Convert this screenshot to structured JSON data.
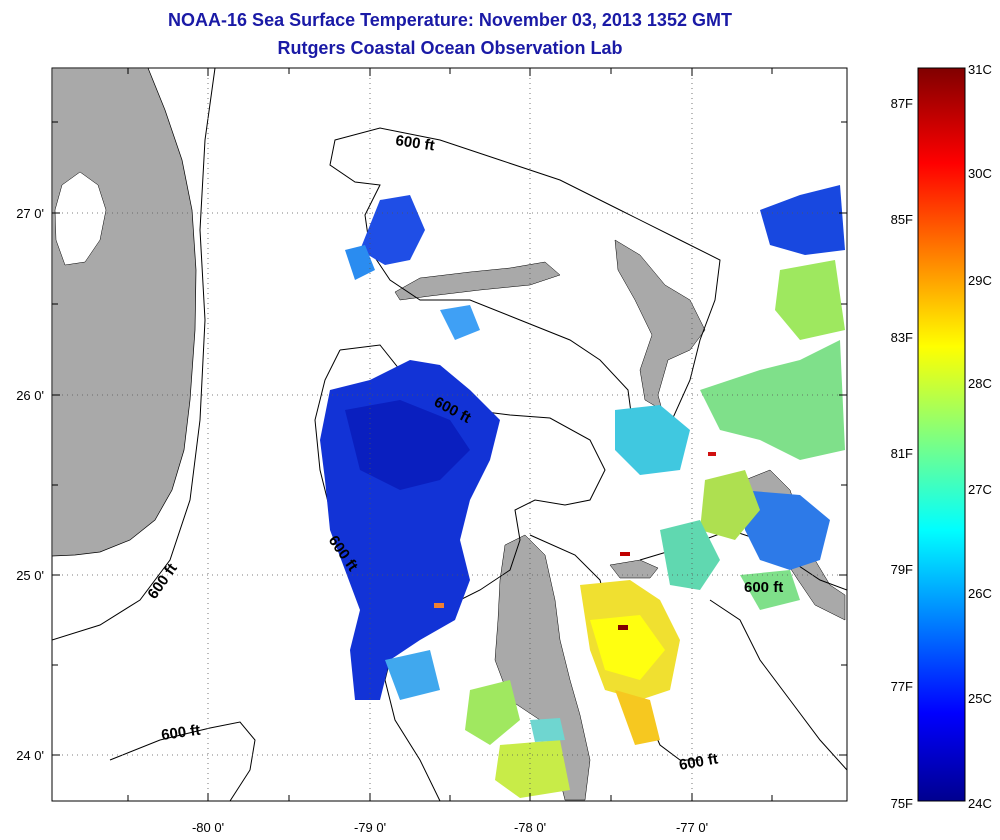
{
  "title": "NOAA-16 Sea Surface Temperature:  November 03, 2013 1352 GMT",
  "subtitle": "Rutgers Coastal Ocean Observation Lab",
  "lon_ticks": [
    "-80 0'",
    "-79 0'",
    "-78 0'",
    "-77 0'"
  ],
  "lat_ticks": [
    "27 0'",
    "26 0'",
    "25 0'",
    "24 0'"
  ],
  "contour_labels": [
    "600 ft",
    "600 ft",
    "600 ft",
    "600 ft",
    "600 ft",
    "600 ft"
  ],
  "colorbar": {
    "celsius": [
      "31C",
      "30C",
      "29C",
      "28C",
      "27C",
      "26C",
      "25C",
      "24C"
    ],
    "fahrenheit": [
      "87F",
      "85F",
      "83F",
      "81F",
      "79F",
      "77F",
      "75F"
    ]
  },
  "colors": {
    "land": "#a9a9a9",
    "title": "#1a1aa6"
  }
}
